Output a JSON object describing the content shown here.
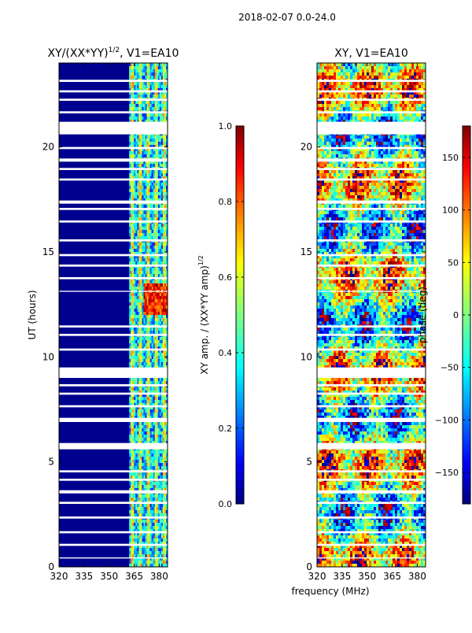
{
  "suptitle": "2018-02-07 0.0-24.0",
  "shared_xlabel": "frequency (MHz)",
  "chart_data": [
    {
      "type": "heatmap",
      "title": "XY/(XX*YY)",
      "title_sup": "1/2",
      "title_suffix": ", V1=EA10",
      "xlabel": "",
      "ylabel": "UT (hours)",
      "xlim": [
        320,
        385
      ],
      "ylim": [
        0,
        24
      ],
      "xticks": [
        320,
        335,
        350,
        365,
        380
      ],
      "yticks": [
        0,
        5,
        10,
        15,
        20
      ],
      "colormap": "jet",
      "data_start_mhz": 362,
      "hot_band_hours": [
        12,
        13.5
      ],
      "colorbar": {
        "label": "XY amp. / (XX*YY amp)",
        "label_sup": "1/2",
        "range": [
          0.0,
          1.0
        ],
        "ticks": [
          "0.0",
          "0.2",
          "0.4",
          "0.6",
          "0.8",
          "1.0"
        ],
        "tick_values": [
          0.0,
          0.2,
          0.4,
          0.6,
          0.8,
          1.0
        ]
      }
    },
    {
      "type": "heatmap",
      "title": "XY, V1=EA10",
      "xlabel": "frequency (MHz)",
      "ylabel": "",
      "xlim": [
        320,
        385
      ],
      "ylim": [
        0,
        24
      ],
      "xticks": [
        320,
        335,
        350,
        365,
        380
      ],
      "yticks": [
        0,
        5,
        10,
        15,
        20
      ],
      "colormap": "jet",
      "colorbar": {
        "label": "phase (deg)",
        "range": [
          -180,
          180
        ],
        "ticks": [
          "−150",
          "−100",
          "−50",
          "0",
          "50",
          "100",
          "150"
        ],
        "tick_values": [
          -150,
          -100,
          -50,
          0,
          50,
          100,
          150
        ]
      }
    }
  ],
  "flag_gaps_hours": [
    [
      20.6,
      21.2
    ],
    [
      9.0,
      9.5
    ],
    [
      5.6,
      5.9
    ],
    [
      6.9,
      7.1
    ],
    [
      23.1,
      23.2
    ],
    [
      22.6,
      22.7
    ],
    [
      22.2,
      22.3
    ],
    [
      21.6,
      21.7
    ],
    [
      19.9,
      20.0
    ],
    [
      19.3,
      19.45
    ],
    [
      18.9,
      19.0
    ],
    [
      18.4,
      18.5
    ],
    [
      17.3,
      17.45
    ],
    [
      17.0,
      17.1
    ],
    [
      16.4,
      16.5
    ],
    [
      15.5,
      15.6
    ],
    [
      14.8,
      14.9
    ],
    [
      14.3,
      14.4
    ],
    [
      13.7,
      13.8
    ],
    [
      13.1,
      13.15
    ],
    [
      11.4,
      11.5
    ],
    [
      11.0,
      11.1
    ],
    [
      10.3,
      10.4
    ],
    [
      8.6,
      8.7
    ],
    [
      8.2,
      8.3
    ],
    [
      7.6,
      7.7
    ],
    [
      4.5,
      4.6
    ],
    [
      4.1,
      4.2
    ],
    [
      3.5,
      3.65
    ],
    [
      3.0,
      3.1
    ],
    [
      2.3,
      2.4
    ],
    [
      1.6,
      1.7
    ],
    [
      1.0,
      1.1
    ],
    [
      0.4,
      0.45
    ]
  ]
}
